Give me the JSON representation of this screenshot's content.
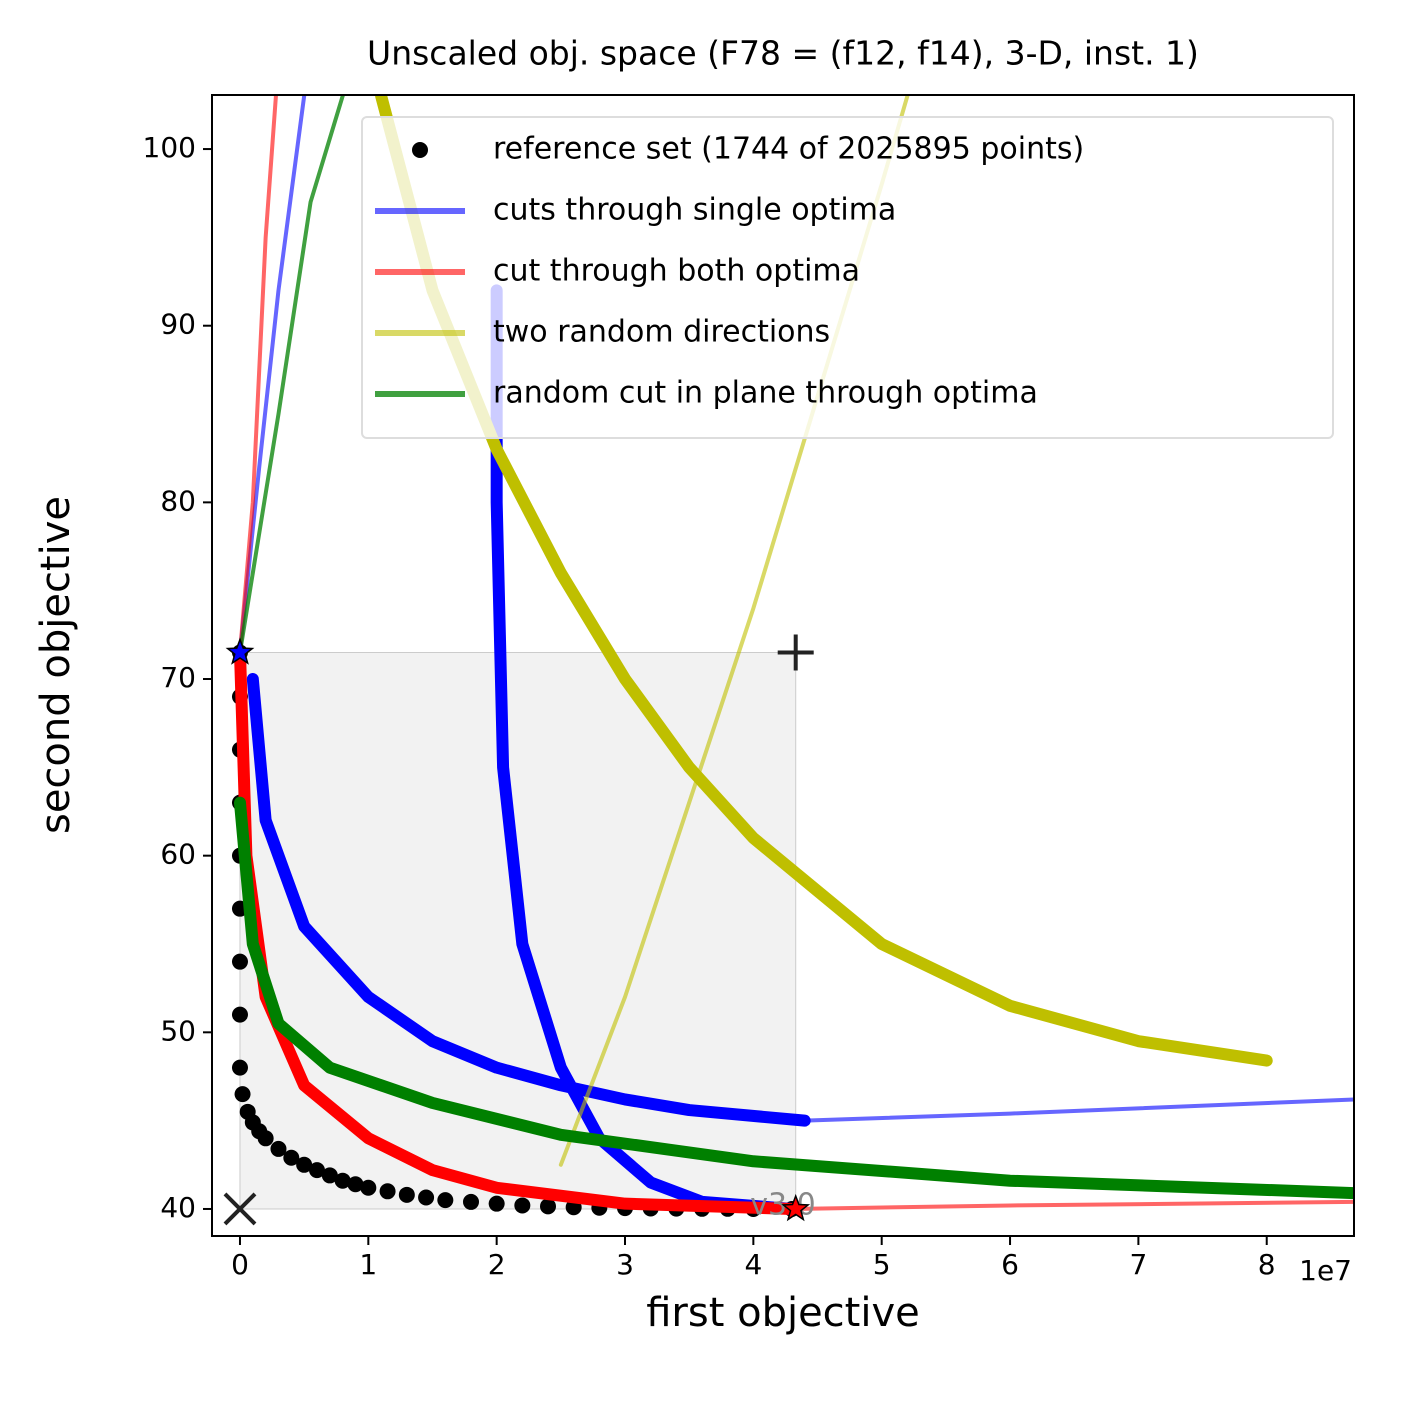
{
  "chart_data": {
    "type": "line",
    "title": "Unscaled obj. space (F78 = (f12, f14), 3-D, inst. 1)",
    "x_label": "first objective",
    "y_label": "second objective",
    "x_offset_label": "1e7",
    "watermark": "v3.0",
    "xlim": [
      -2180000,
      86800000
    ],
    "ylim": [
      38.47,
      103.06
    ],
    "xticks": [
      0,
      {
        "value": 10000000,
        "label": "1"
      },
      {
        "value": 20000000,
        "label": "2"
      },
      {
        "value": 30000000,
        "label": "3"
      },
      {
        "value": 40000000,
        "label": "4"
      },
      {
        "value": 50000000,
        "label": "5"
      },
      {
        "value": 60000000,
        "label": "6"
      },
      {
        "value": 70000000,
        "label": "7"
      },
      {
        "value": 80000000,
        "label": "8"
      }
    ],
    "yticks": [
      40,
      50,
      60,
      70,
      80,
      90,
      100
    ],
    "legend": "upper right",
    "region": {
      "x": [
        0,
        43300000
      ],
      "y": [
        40,
        71.5
      ],
      "color": "#e6e6e6"
    },
    "markers": [
      {
        "x": 0,
        "y": 71.5,
        "marker": "star",
        "color": "#0000ff"
      },
      {
        "x": 43300000,
        "y": 40,
        "marker": "star",
        "color": "#ff0000"
      },
      {
        "x": 43300000,
        "y": 71.5,
        "marker": "plus",
        "color": "#222222"
      },
      {
        "x": 0,
        "y": 40,
        "marker": "cross",
        "color": "#222222"
      }
    ],
    "series": [
      {
        "name": "reference set (1744 of 2025895 points)",
        "color": "#000000",
        "marker": "o",
        "x": [
          0,
          0,
          0,
          0,
          0,
          0,
          0,
          0,
          0,
          200000,
          600000,
          1000000,
          1500000,
          2000000,
          3000000,
          4000000,
          5000000,
          6000000,
          7000000,
          8000000,
          9000000,
          10000000,
          11500000,
          13000000,
          14500000,
          16000000,
          18000000,
          20000000,
          22000000,
          24000000,
          26000000,
          28000000,
          30000000,
          32000000,
          34000000,
          36000000,
          38000000,
          40000000,
          43000000
        ],
        "values": [
          71.5,
          69,
          66,
          63,
          60,
          57,
          54,
          51,
          48,
          46.5,
          45.5,
          44.9,
          44.4,
          44,
          43.4,
          42.9,
          42.5,
          42.2,
          41.9,
          41.6,
          41.4,
          41.2,
          41,
          40.8,
          40.65,
          40.5,
          40.4,
          40.3,
          40.2,
          40.15,
          40.1,
          40.07,
          40.05,
          40.03,
          40.02,
          40.01,
          40.01,
          40,
          40
        ]
      },
      {
        "name": "cuts through single optima",
        "color": "#0000ff",
        "opacity": 0.6,
        "linewidth": 4,
        "x": [
          0,
          1500000,
          3000000,
          5000000
        ],
        "values": [
          71.5,
          82,
          92,
          103
        ]
      },
      {
        "color": "#0000ff",
        "linewidth": 12,
        "x": [
          1000000,
          2000000,
          5000000,
          10000000,
          15000000,
          20000000,
          25000000,
          30000000,
          35000000,
          44000000
        ],
        "values": [
          70,
          62,
          56,
          52,
          49.5,
          48,
          47,
          46.2,
          45.6,
          45
        ]
      },
      {
        "color": "#0000ff",
        "opacity": 0.6,
        "linewidth": 4,
        "x": [
          44000000,
          60000000,
          86800000
        ],
        "values": [
          45,
          45.4,
          46.2
        ]
      },
      {
        "color": "#0000ff",
        "linewidth": 12,
        "x": [
          20000000,
          20000000,
          20500000,
          22000000,
          25000000,
          28000000,
          32000000,
          36000000,
          43000000
        ],
        "values": [
          92,
          80,
          65,
          55,
          48,
          44,
          41.5,
          40.4,
          40
        ]
      },
      {
        "name": "cut through both optima",
        "color": "#ff0000",
        "opacity": 0.6,
        "linewidth": 4,
        "x": [
          0,
          1000000,
          2000000,
          2800000
        ],
        "values": [
          71.5,
          80,
          95,
          103
        ]
      },
      {
        "color": "#ff0000",
        "linewidth": 12,
        "x": [
          0,
          500000,
          2000000,
          5000000,
          10000000,
          15000000,
          20000000,
          30000000,
          43000000
        ],
        "values": [
          71.5,
          60,
          52,
          47,
          44,
          42.2,
          41.2,
          40.3,
          40
        ]
      },
      {
        "color": "#ff0000",
        "opacity": 0.6,
        "linewidth": 4,
        "x": [
          43000000,
          60000000,
          86800000
        ],
        "values": [
          40,
          40.2,
          40.4
        ]
      },
      {
        "name": "two random directions",
        "color": "#bfbf00",
        "opacity": 0.6,
        "linewidth": 4,
        "x": [
          25000000,
          30000000,
          35000000,
          40000000,
          45000000,
          50000000,
          52000000
        ],
        "values": [
          42.5,
          52,
          63,
          74,
          86,
          98,
          103
        ]
      },
      {
        "color": "#bfbf00",
        "linewidth": 12,
        "x": [
          11000000,
          15000000,
          20000000,
          25000000,
          30000000,
          35000000,
          40000000,
          50000000,
          60000000,
          70000000,
          80000000
        ],
        "values": [
          103,
          92,
          83,
          76,
          70,
          65,
          61,
          55,
          51.5,
          49.5,
          48.4
        ]
      },
      {
        "name": "random cut in plane through optima",
        "color": "#008000",
        "opacity": 0.75,
        "linewidth": 4,
        "x": [
          0,
          3000000,
          5500000,
          8000000
        ],
        "values": [
          71.5,
          85,
          97,
          103
        ]
      },
      {
        "color": "#008000",
        "linewidth": 12,
        "x": [
          0,
          1000000,
          3000000,
          7000000,
          15000000,
          25000000,
          40000000,
          60000000,
          86800000
        ],
        "values": [
          63,
          55,
          50.5,
          48,
          46,
          44.2,
          42.7,
          41.6,
          40.9
        ]
      }
    ]
  }
}
